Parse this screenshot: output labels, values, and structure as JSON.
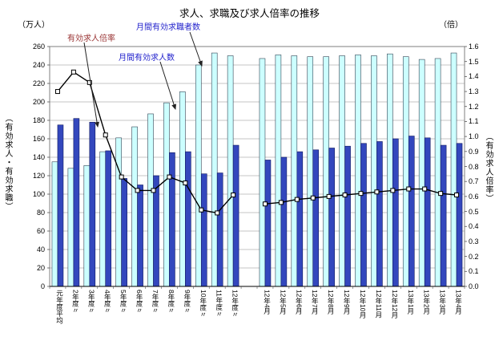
{
  "title": "求人、求職及び求人倍率の推移",
  "axes": {
    "left_unit": "（万人）",
    "right_unit": "（倍）",
    "left_caption": "（有効求人・有効求職）",
    "right_caption": "（有効求人倍率）",
    "left_ticks": [
      0,
      20,
      40,
      60,
      80,
      100,
      120,
      140,
      160,
      180,
      200,
      220,
      240,
      260
    ],
    "right_ticks": [
      "0.0",
      "0.1",
      "0.2",
      "0.3",
      "0.4",
      "0.5",
      "0.6",
      "0.7",
      "0.8",
      "0.9",
      "1.0",
      "1.1",
      "1.2",
      "1.3",
      "1.4",
      "1.5",
      "1.6"
    ]
  },
  "annotations": {
    "ratio_label": "有効求人倍率",
    "seekers_label": "月間有効求職者数",
    "offers_label": "月間有効求人数"
  },
  "colors": {
    "seekers_bar": "#ccffff",
    "seekers_border": "#334455",
    "offers_bar": "#3347bd",
    "offers_border": "#101a60",
    "ratio_line": "#000000",
    "grid": "#c6c6c6",
    "plot_border": "#7f7f7f"
  },
  "chart_data": {
    "type": "bar",
    "title": "求人、求職及び求人倍率の推移",
    "categories": [
      "元年度平均",
      "2年度〃",
      "3年度〃",
      "4年度〃",
      "5年度〃",
      "6年度〃",
      "7年度〃",
      "8年度〃",
      "9年度〃",
      "10年度〃",
      "11年度〃",
      "12年度〃",
      "12年4月",
      "12年5月",
      "12年6月",
      "12年7月",
      "12年8月",
      "12年9月",
      "12年10月",
      "12年11月",
      "12年12月",
      "13年1月",
      "13年2月",
      "13年3月",
      "13年4月"
    ],
    "gap_after_index": 11,
    "left_axis": {
      "label": "（万人）",
      "min": 0,
      "max": 260,
      "step": 20
    },
    "right_axis": {
      "label": "（倍）",
      "min": 0,
      "max": 1.6,
      "step": 0.1
    },
    "series": [
      {
        "name": "月間有効求職者数",
        "type": "bar",
        "axis": "left",
        "color": "#ccffff",
        "values": [
          135,
          128,
          131,
          146,
          161,
          173,
          187,
          199,
          211,
          240,
          253,
          250,
          247,
          251,
          250,
          249,
          249,
          250,
          251,
          250,
          252,
          249,
          246,
          247,
          253
        ]
      },
      {
        "name": "月間有効求人数",
        "type": "bar",
        "axis": "left",
        "color": "#3347bd",
        "values": [
          175,
          182,
          178,
          147,
          117,
          110,
          120,
          145,
          146,
          122,
          123,
          153,
          137,
          140,
          146,
          148,
          150,
          152,
          155,
          157,
          160,
          163,
          161,
          153,
          155
        ]
      },
      {
        "name": "有効求人倍率",
        "type": "line",
        "axis": "right",
        "color": "#000000",
        "values": [
          1.3,
          1.43,
          1.36,
          1.01,
          0.73,
          0.64,
          0.64,
          0.73,
          0.69,
          0.51,
          0.49,
          0.61,
          0.55,
          0.56,
          0.58,
          0.59,
          0.6,
          0.61,
          0.62,
          0.63,
          0.64,
          0.65,
          0.65,
          0.62,
          0.61
        ]
      }
    ],
    "legend_position": "none",
    "grid": true
  }
}
